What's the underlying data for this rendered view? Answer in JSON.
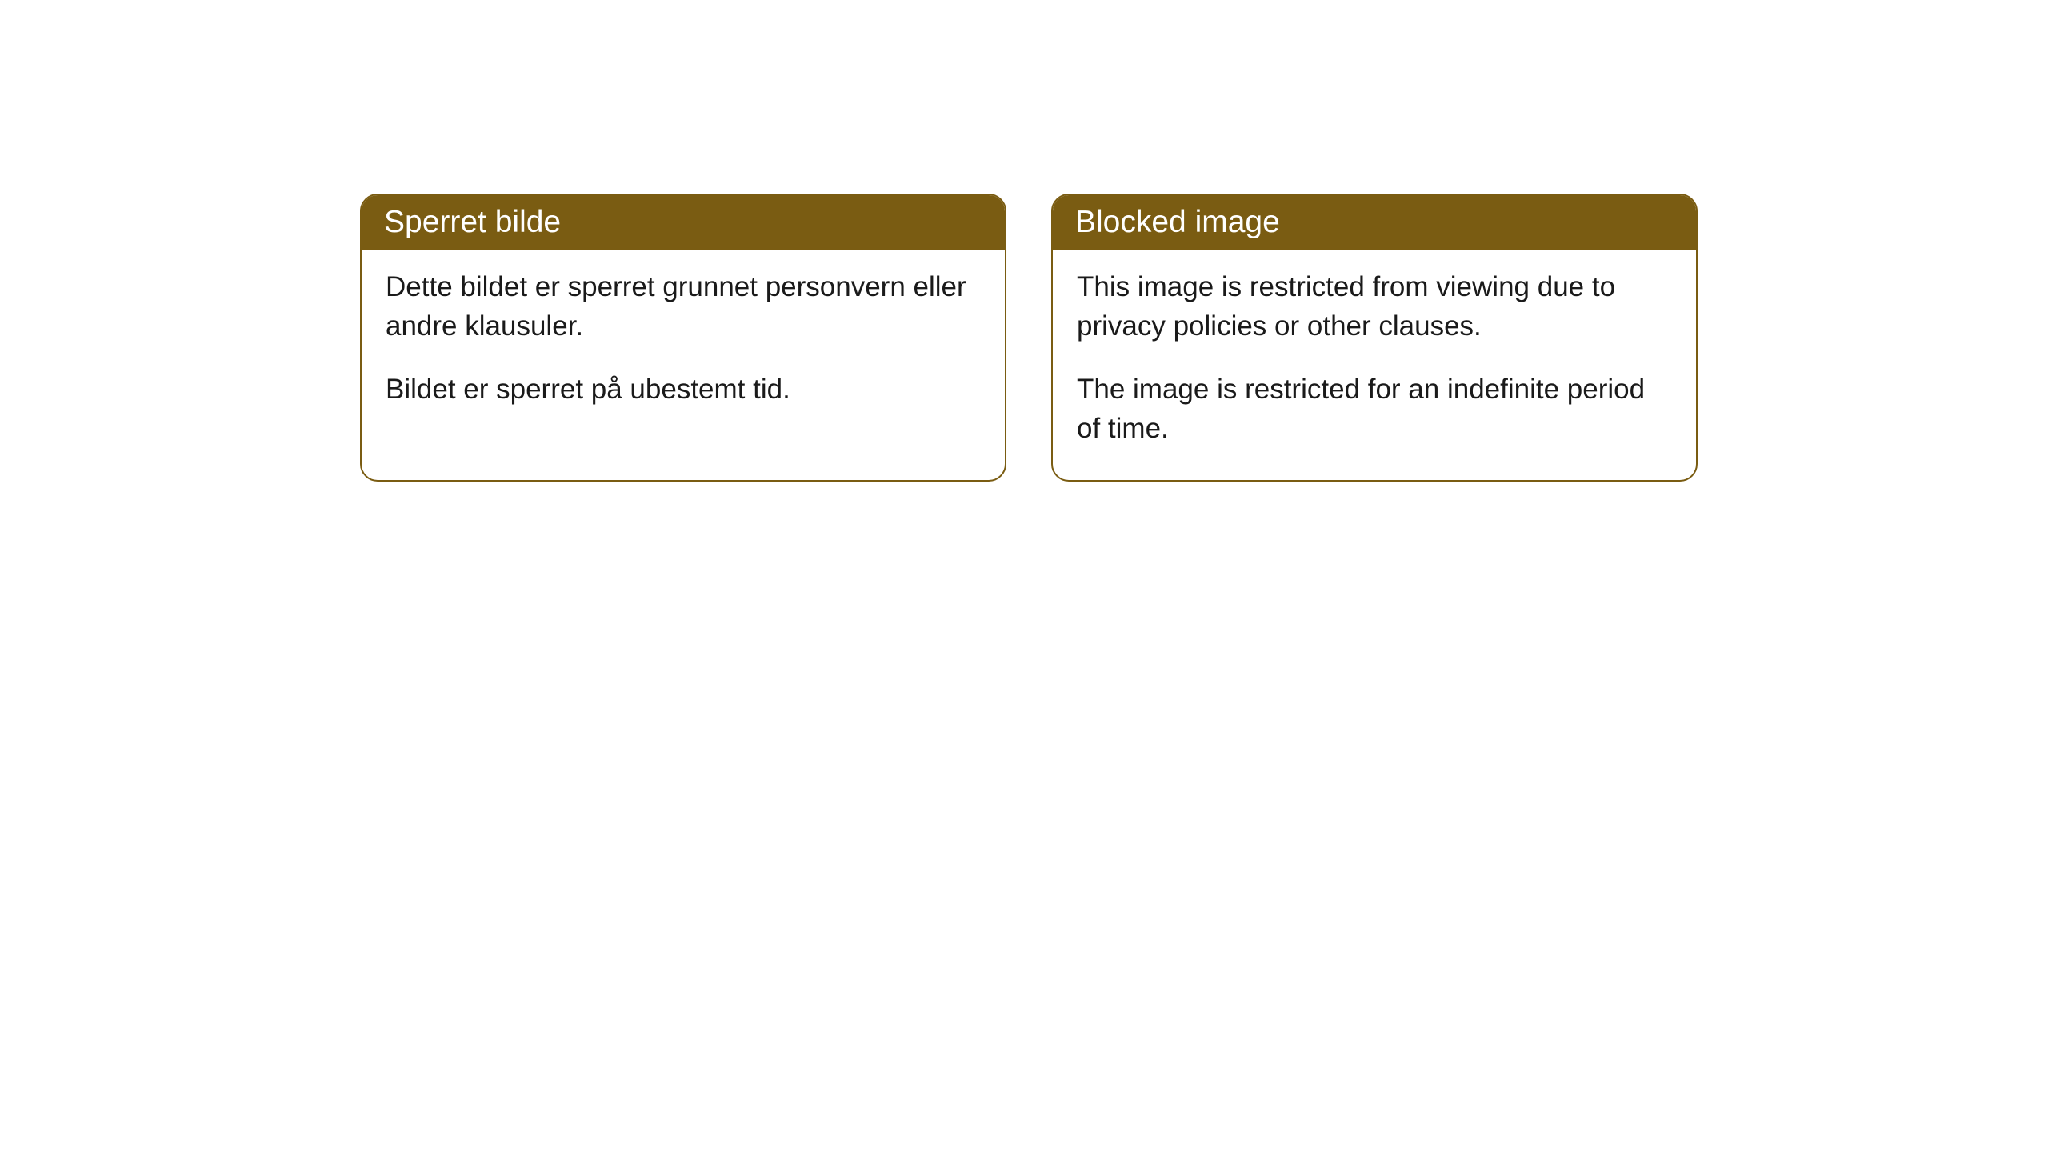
{
  "cards": [
    {
      "title": "Sperret bilde",
      "paragraph1": "Dette bildet er sperret grunnet personvern eller andre klausuler.",
      "paragraph2": "Bildet er sperret på ubestemt tid."
    },
    {
      "title": "Blocked image",
      "paragraph1": "This image is restricted from viewing due to privacy policies or other clauses.",
      "paragraph2": "The image is restricted for an indefinite period of time."
    }
  ],
  "style": {
    "header_bg_color": "#7a5c12",
    "header_text_color": "#ffffff",
    "border_color": "#7a5c12",
    "body_text_color": "#1a1a1a",
    "card_bg_color": "#ffffff",
    "page_bg_color": "#ffffff",
    "border_radius": 22,
    "header_font_size": 39,
    "body_font_size": 35
  }
}
